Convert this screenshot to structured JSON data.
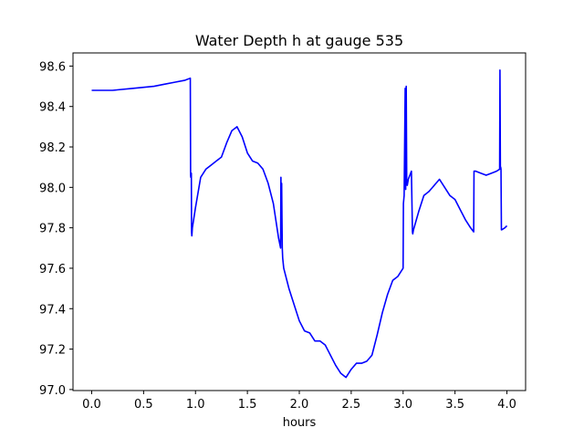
{
  "chart_data": {
    "type": "line",
    "title": "Water Depth h at gauge 535",
    "xlabel": "hours",
    "ylabel": "",
    "xlim": [
      -0.18,
      4.18
    ],
    "ylim": [
      96.995,
      98.665
    ],
    "xticks": [
      0.0,
      0.5,
      1.0,
      1.5,
      2.0,
      2.5,
      3.0,
      3.5,
      4.0
    ],
    "xtick_labels": [
      "0.0",
      "0.5",
      "1.0",
      "1.5",
      "2.0",
      "2.5",
      "3.0",
      "3.5",
      "4.0"
    ],
    "yticks": [
      97.0,
      97.2,
      97.4,
      97.6,
      97.8,
      98.0,
      98.2,
      98.4,
      98.6
    ],
    "ytick_labels": [
      "97.0",
      "97.2",
      "97.4",
      "97.6",
      "97.8",
      "98.0",
      "98.2",
      "98.4",
      "98.6"
    ],
    "grid": false,
    "series": [
      {
        "color": "#0000ff",
        "x": [
          0.0,
          0.2,
          0.4,
          0.6,
          0.7,
          0.8,
          0.9,
          0.95,
          0.953,
          0.955,
          0.96,
          0.962,
          0.965,
          0.97,
          1.0,
          1.05,
          1.1,
          1.15,
          1.2,
          1.25,
          1.3,
          1.35,
          1.4,
          1.45,
          1.5,
          1.55,
          1.6,
          1.65,
          1.7,
          1.75,
          1.8,
          1.82,
          1.823,
          1.826,
          1.83,
          1.833,
          1.836,
          1.84,
          1.85,
          1.9,
          1.95,
          2.0,
          2.05,
          2.1,
          2.15,
          2.2,
          2.25,
          2.3,
          2.35,
          2.4,
          2.45,
          2.5,
          2.55,
          2.6,
          2.65,
          2.7,
          2.75,
          2.8,
          2.85,
          2.9,
          2.95,
          3.0,
          3.003,
          3.01,
          3.02,
          3.025,
          3.03,
          3.035,
          3.04,
          3.05,
          3.08,
          3.09,
          3.093,
          3.1,
          3.15,
          3.2,
          3.25,
          3.3,
          3.35,
          3.4,
          3.45,
          3.5,
          3.55,
          3.6,
          3.65,
          3.68,
          3.683,
          3.7,
          3.75,
          3.8,
          3.85,
          3.9,
          3.93,
          3.933,
          3.937,
          3.94,
          3.943,
          3.947,
          3.95,
          3.98,
          4.0
        ],
        "y": [
          98.48,
          98.48,
          98.49,
          98.5,
          98.51,
          98.52,
          98.53,
          98.54,
          98.06,
          98.05,
          98.07,
          97.78,
          97.76,
          97.8,
          97.9,
          98.05,
          98.09,
          98.11,
          98.13,
          98.15,
          98.22,
          98.28,
          98.3,
          98.25,
          98.17,
          98.13,
          98.12,
          98.09,
          98.02,
          97.92,
          97.75,
          97.7,
          98.05,
          97.9,
          98.02,
          97.85,
          97.7,
          97.65,
          97.6,
          97.5,
          97.42,
          97.34,
          97.29,
          97.28,
          97.24,
          97.24,
          97.22,
          97.17,
          97.12,
          97.08,
          97.06,
          97.1,
          97.13,
          97.13,
          97.14,
          97.17,
          97.27,
          97.38,
          97.47,
          97.54,
          97.56,
          97.6,
          97.92,
          97.96,
          98.49,
          97.99,
          98.5,
          98.02,
          98.01,
          98.04,
          98.08,
          97.78,
          97.77,
          97.79,
          97.88,
          97.96,
          97.98,
          98.01,
          98.04,
          98.0,
          97.96,
          97.94,
          97.89,
          97.84,
          97.8,
          97.78,
          98.08,
          98.08,
          98.07,
          98.06,
          98.07,
          98.08,
          98.09,
          98.58,
          98.1,
          98.1,
          98.09,
          97.79,
          97.79,
          97.8,
          97.81
        ]
      }
    ]
  }
}
